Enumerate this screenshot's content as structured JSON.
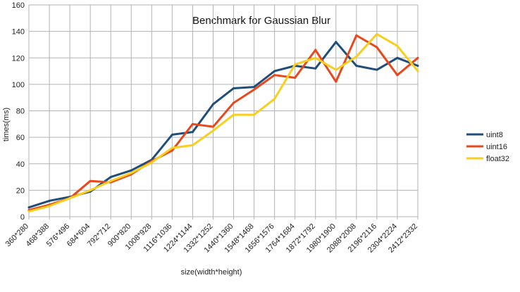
{
  "chart_data": {
    "type": "line",
    "title": "Benchmark for Gaussian Blur",
    "xlabel": "size(width*height)",
    "ylabel": "times(ms)",
    "ylim": [
      0,
      160
    ],
    "yticks": [
      0,
      20,
      40,
      60,
      80,
      100,
      120,
      140,
      160
    ],
    "grid": true,
    "legend_position": "right",
    "categories": [
      "360*280",
      "468*388",
      "576*496",
      "684*604",
      "792*712",
      "900*820",
      "1008*928",
      "1116*1036",
      "1224*1144",
      "1332*1252",
      "1440*1360",
      "1548*1468",
      "1656*1576",
      "1764*1684",
      "1872*1792",
      "1980*1900",
      "2088*2008",
      "2196*2116",
      "2304*2224",
      "2412*2332"
    ],
    "series": [
      {
        "name": "uint8",
        "color": "#1f4e79",
        "values": [
          7,
          12,
          15,
          19,
          30,
          35,
          43,
          62,
          64,
          85,
          97,
          98,
          110,
          114,
          112,
          132,
          114,
          111,
          120,
          114
        ]
      },
      {
        "name": "uint16",
        "color": "#e8481c",
        "values": [
          5,
          9,
          14,
          27,
          26,
          32,
          42,
          50,
          70,
          68,
          86,
          96,
          107,
          105,
          126,
          102,
          137,
          128,
          107,
          120
        ]
      },
      {
        "name": "float32",
        "color": "#f8cf1f",
        "values": [
          4,
          8,
          14,
          20,
          27,
          33,
          41,
          52,
          54,
          65,
          77,
          77,
          89,
          115,
          120,
          111,
          121,
          138,
          129,
          110
        ]
      }
    ]
  }
}
